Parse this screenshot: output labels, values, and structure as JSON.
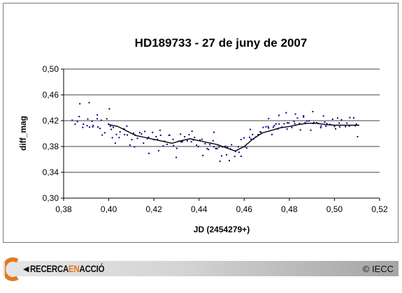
{
  "chart_data": {
    "type": "scatter",
    "title": "HD189733 - 27 de juny de 2007",
    "xlabel": "JD (2454279+)",
    "ylabel": "diff_mag",
    "xlim": [
      0.38,
      0.52
    ],
    "ylim": [
      0.3,
      0.5
    ],
    "xticks": [
      "0,38",
      "0,40",
      "0,42",
      "0,44",
      "0,46",
      "0,48",
      "0,50",
      "0,52"
    ],
    "yticks": [
      "0,30",
      "0,34",
      "0,38",
      "0,42",
      "0,46",
      "0,50"
    ],
    "grid": "horizontal",
    "point_color": "#00008b",
    "line_color": "#000000",
    "points": [
      [
        0.3838,
        0.4206
      ],
      [
        0.3851,
        0.4145
      ],
      [
        0.3861,
        0.4186
      ],
      [
        0.3869,
        0.4264
      ],
      [
        0.3885,
        0.4096
      ],
      [
        0.3888,
        0.4147
      ],
      [
        0.3904,
        0.4122
      ],
      [
        0.3907,
        0.4226
      ],
      [
        0.3915,
        0.4101
      ],
      [
        0.3926,
        0.4191
      ],
      [
        0.3929,
        0.4104
      ],
      [
        0.3931,
        0.4125
      ],
      [
        0.3949,
        0.423
      ],
      [
        0.3952,
        0.4102
      ],
      [
        0.3961,
        0.4079
      ],
      [
        0.3967,
        0.4206
      ],
      [
        0.3971,
        0.3977
      ],
      [
        0.3982,
        0.4012
      ],
      [
        0.3991,
        0.4229
      ],
      [
        0.3999,
        0.4147
      ],
      [
        0.4007,
        0.4116
      ],
      [
        0.4011,
        0.4065
      ],
      [
        0.4016,
        0.3936
      ],
      [
        0.402,
        0.4096
      ],
      [
        0.4034,
        0.3986
      ],
      [
        0.4046,
        0.3938
      ],
      [
        0.405,
        0.4027
      ],
      [
        0.4068,
        0.4074
      ],
      [
        0.407,
        0.3985
      ],
      [
        0.408,
        0.4116
      ],
      [
        0.4082,
        0.3978
      ],
      [
        0.4094,
        0.3821
      ],
      [
        0.4102,
        0.3906
      ],
      [
        0.411,
        0.4007
      ],
      [
        0.4117,
        0.3977
      ],
      [
        0.4127,
        0.3927
      ],
      [
        0.4137,
        0.4016
      ],
      [
        0.4145,
        0.3995
      ],
      [
        0.4154,
        0.3852
      ],
      [
        0.416,
        0.4032
      ],
      [
        0.4171,
        0.3922
      ],
      [
        0.4176,
        0.3944
      ],
      [
        0.4194,
        0.4018
      ],
      [
        0.42,
        0.3907
      ],
      [
        0.421,
        0.3952
      ],
      [
        0.4216,
        0.3909
      ],
      [
        0.4221,
        0.3734
      ],
      [
        0.423,
        0.3974
      ],
      [
        0.4241,
        0.3809
      ],
      [
        0.4247,
        0.3881
      ],
      [
        0.4258,
        0.3833
      ],
      [
        0.4267,
        0.3973
      ],
      [
        0.427,
        0.3976
      ],
      [
        0.4285,
        0.3911
      ],
      [
        0.4287,
        0.3813
      ],
      [
        0.4301,
        0.3771
      ],
      [
        0.431,
        0.3881
      ],
      [
        0.4318,
        0.3991
      ],
      [
        0.4321,
        0.387
      ],
      [
        0.4327,
        0.3877
      ],
      [
        0.4336,
        0.3951
      ],
      [
        0.4348,
        0.3888
      ],
      [
        0.4356,
        0.3983
      ],
      [
        0.4366,
        0.3872
      ],
      [
        0.4375,
        0.3902
      ],
      [
        0.438,
        0.394
      ],
      [
        0.4389,
        0.3821
      ],
      [
        0.4397,
        0.3799
      ],
      [
        0.4404,
        0.3901
      ],
      [
        0.4413,
        0.3911
      ],
      [
        0.4427,
        0.3843
      ],
      [
        0.4436,
        0.3767
      ],
      [
        0.4442,
        0.3754
      ],
      [
        0.4448,
        0.3829
      ],
      [
        0.4462,
        0.389
      ],
      [
        0.4466,
        0.3797
      ],
      [
        0.4474,
        0.3769
      ],
      [
        0.448,
        0.3766
      ],
      [
        0.4488,
        0.3792
      ],
      [
        0.45,
        0.3655
      ],
      [
        0.4503,
        0.3795
      ],
      [
        0.4517,
        0.3805
      ],
      [
        0.4522,
        0.3671
      ],
      [
        0.4526,
        0.3793
      ],
      [
        0.4539,
        0.3761
      ],
      [
        0.4544,
        0.3827
      ],
      [
        0.4558,
        0.3646
      ],
      [
        0.4562,
        0.3723
      ],
      [
        0.4574,
        0.3796
      ],
      [
        0.4577,
        0.3709
      ],
      [
        0.4586,
        0.3907
      ],
      [
        0.4599,
        0.3934
      ],
      [
        0.4604,
        0.3797
      ],
      [
        0.4611,
        0.3775
      ],
      [
        0.4624,
        0.3943
      ],
      [
        0.463,
        0.3913
      ],
      [
        0.4637,
        0.3985
      ],
      [
        0.4642,
        0.3916
      ],
      [
        0.4651,
        0.3946
      ],
      [
        0.4662,
        0.3984
      ],
      [
        0.4671,
        0.4026
      ],
      [
        0.4674,
        0.4022
      ],
      [
        0.4684,
        0.4096
      ],
      [
        0.4696,
        0.4106
      ],
      [
        0.4706,
        0.4109
      ],
      [
        0.4708,
        0.4086
      ],
      [
        0.4723,
        0.3986
      ],
      [
        0.4729,
        0.4101
      ],
      [
        0.4734,
        0.4125
      ],
      [
        0.4741,
        0.415
      ],
      [
        0.4749,
        0.4072
      ],
      [
        0.4755,
        0.4148
      ],
      [
        0.4767,
        0.4101
      ],
      [
        0.4777,
        0.4152
      ],
      [
        0.479,
        0.4071
      ],
      [
        0.4791,
        0.4165
      ],
      [
        0.4798,
        0.4163
      ],
      [
        0.4811,
        0.4095
      ],
      [
        0.4821,
        0.4186
      ],
      [
        0.4824,
        0.4152
      ],
      [
        0.4836,
        0.424
      ],
      [
        0.4845,
        0.4158
      ],
      [
        0.4849,
        0.4055
      ],
      [
        0.4863,
        0.4255
      ],
      [
        0.487,
        0.417
      ],
      [
        0.4878,
        0.4195
      ],
      [
        0.4887,
        0.4197
      ],
      [
        0.4895,
        0.4052
      ],
      [
        0.4906,
        0.4158
      ],
      [
        0.4909,
        0.4171
      ],
      [
        0.4921,
        0.4168
      ],
      [
        0.4928,
        0.4158
      ],
      [
        0.4939,
        0.4093
      ],
      [
        0.4941,
        0.4118
      ],
      [
        0.4957,
        0.4176
      ],
      [
        0.4962,
        0.4115
      ],
      [
        0.4966,
        0.4154
      ],
      [
        0.4981,
        0.4143
      ],
      [
        0.4992,
        0.4223
      ],
      [
        0.5,
        0.411
      ],
      [
        0.5005,
        0.4073
      ],
      [
        0.5021,
        0.4163
      ],
      [
        0.5023,
        0.4105
      ],
      [
        0.5031,
        0.4214
      ],
      [
        0.5049,
        0.4108
      ],
      [
        0.5055,
        0.4162
      ],
      [
        0.5066,
        0.4117
      ],
      [
        0.5068,
        0.4248
      ],
      [
        0.5085,
        0.4243
      ],
      [
        0.5092,
        0.4121
      ],
      [
        0.5097,
        0.4147
      ],
      [
        0.3872,
        0.4463
      ],
      [
        0.3913,
        0.4479
      ],
      [
        0.3949,
        0.4291
      ],
      [
        0.4003,
        0.4383
      ],
      [
        0.4029,
        0.3852
      ],
      [
        0.4114,
        0.3795
      ],
      [
        0.4178,
        0.3693
      ],
      [
        0.4227,
        0.4051
      ],
      [
        0.4299,
        0.3631
      ],
      [
        0.4369,
        0.4037
      ],
      [
        0.4417,
        0.3661
      ],
      [
        0.4466,
        0.4021
      ],
      [
        0.4493,
        0.3571
      ],
      [
        0.4534,
        0.3581
      ],
      [
        0.4586,
        0.3649
      ],
      [
        0.4627,
        0.4064
      ],
      [
        0.4708,
        0.4232
      ],
      [
        0.4754,
        0.4282
      ],
      [
        0.4786,
        0.4323
      ],
      [
        0.4827,
        0.4302
      ],
      [
        0.4863,
        0.4276
      ],
      [
        0.4904,
        0.4341
      ],
      [
        0.4951,
        0.4272
      ],
      [
        0.5014,
        0.4241
      ],
      [
        0.5102,
        0.3952
      ]
    ],
    "trend": [
      [
        0.4,
        0.414
      ],
      [
        0.404,
        0.411
      ],
      [
        0.408,
        0.404
      ],
      [
        0.412,
        0.397
      ],
      [
        0.416,
        0.394
      ],
      [
        0.42,
        0.391
      ],
      [
        0.424,
        0.388
      ],
      [
        0.428,
        0.385
      ],
      [
        0.432,
        0.389
      ],
      [
        0.436,
        0.392
      ],
      [
        0.44,
        0.389
      ],
      [
        0.444,
        0.386
      ],
      [
        0.448,
        0.383
      ],
      [
        0.452,
        0.378
      ],
      [
        0.456,
        0.373
      ],
      [
        0.46,
        0.38
      ],
      [
        0.464,
        0.392
      ],
      [
        0.468,
        0.401
      ],
      [
        0.472,
        0.405
      ],
      [
        0.476,
        0.409
      ],
      [
        0.48,
        0.411
      ],
      [
        0.484,
        0.414
      ],
      [
        0.488,
        0.416
      ],
      [
        0.492,
        0.416
      ],
      [
        0.496,
        0.414
      ],
      [
        0.5,
        0.413
      ],
      [
        0.505,
        0.413
      ],
      [
        0.511,
        0.413
      ]
    ]
  },
  "footer": {
    "brand_part1": "RECERCA",
    "brand_part2": "EN",
    "brand_part3": "ACCIÓ",
    "copyright": "© IECC",
    "arrow_icon": "left-triangle-icon",
    "logo_icon": "orange-c-logo-icon",
    "brand_accent": "#e07a1f"
  }
}
